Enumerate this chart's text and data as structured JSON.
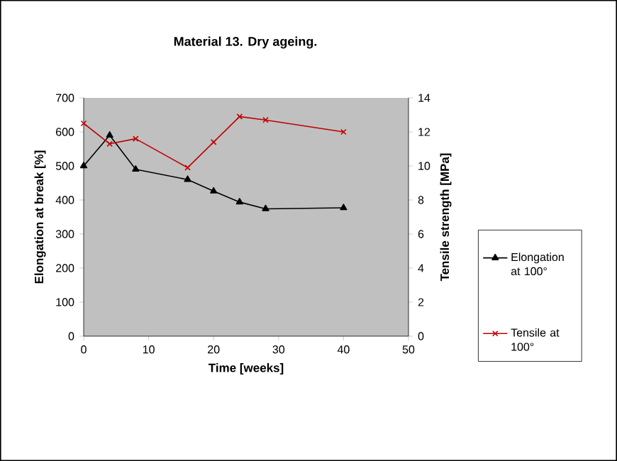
{
  "chart_data": {
    "type": "line",
    "title": "Material 13. Dry ageing.",
    "xlabel": "Time [weeks]",
    "ylabel": "Elongation at break [%]",
    "y2label": "Tensile strength [MPa]",
    "x": [
      0,
      4,
      8,
      16,
      20,
      24,
      28,
      40
    ],
    "series": [
      {
        "name": "Elongation at 100°",
        "color": "#000000",
        "marker": "triangle",
        "values": [
          500,
          590,
          490,
          460,
          426,
          394,
          374,
          377
        ]
      },
      {
        "name": "Tensile at 100°",
        "color": "#c00000",
        "marker": "cross",
        "axis": "y2",
        "values": [
          12.5,
          11.3,
          11.6,
          9.9,
          11.4,
          12.9,
          12.7,
          12.0
        ]
      }
    ],
    "xlim": [
      0,
      50
    ],
    "xticks": [
      0,
      10,
      20,
      30,
      40,
      50
    ],
    "ylim": [
      0,
      700
    ],
    "yticks": [
      0,
      100,
      200,
      300,
      400,
      500,
      600,
      700
    ],
    "y2lim": [
      0,
      14
    ],
    "y2ticks": [
      0,
      2,
      4,
      6,
      8,
      10,
      12,
      14
    ],
    "grid": false,
    "legend": "right"
  }
}
